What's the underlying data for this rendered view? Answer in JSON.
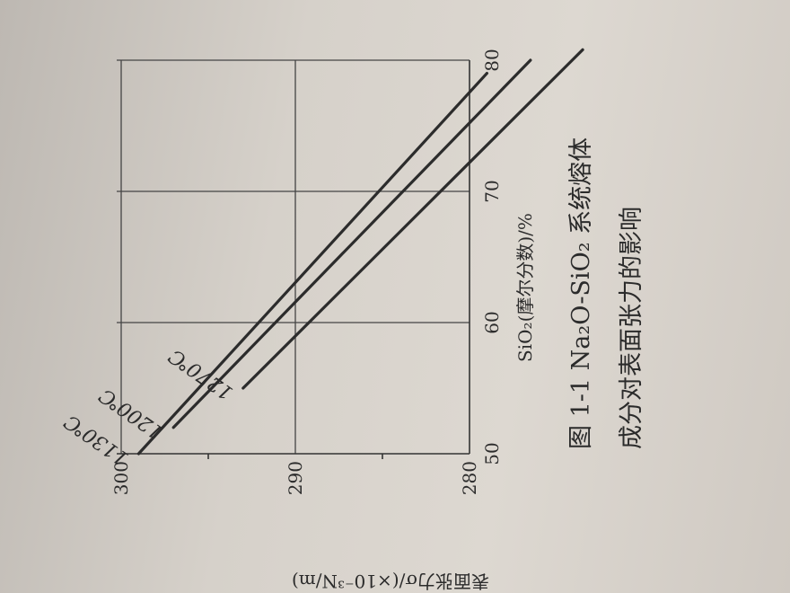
{
  "chart_data": {
    "type": "line",
    "xlabel": "SiO₂(摩尔分数)/%",
    "ylabel": "表面张力σ/(×10⁻³N/m)",
    "xlim": [
      50,
      80
    ],
    "ylim": [
      280,
      300
    ],
    "x_ticks": [
      "50",
      "60",
      "70",
      "80"
    ],
    "y_ticks": [
      "280",
      "290",
      "300"
    ],
    "grid": true,
    "series": [
      {
        "name": "1130℃",
        "x": [
          50,
          79
        ],
        "y": [
          299,
          279
        ]
      },
      {
        "name": "1200℃",
        "x": [
          52,
          80
        ],
        "y": [
          297,
          276.5
        ]
      },
      {
        "name": "1270℃",
        "x": [
          55,
          80.8
        ],
        "y": [
          293,
          273.5
        ]
      }
    ]
  },
  "caption": {
    "line1": "图 1-1   Na₂O-SiO₂ 系统熔体",
    "line2": "成分对表面张力的影响"
  }
}
